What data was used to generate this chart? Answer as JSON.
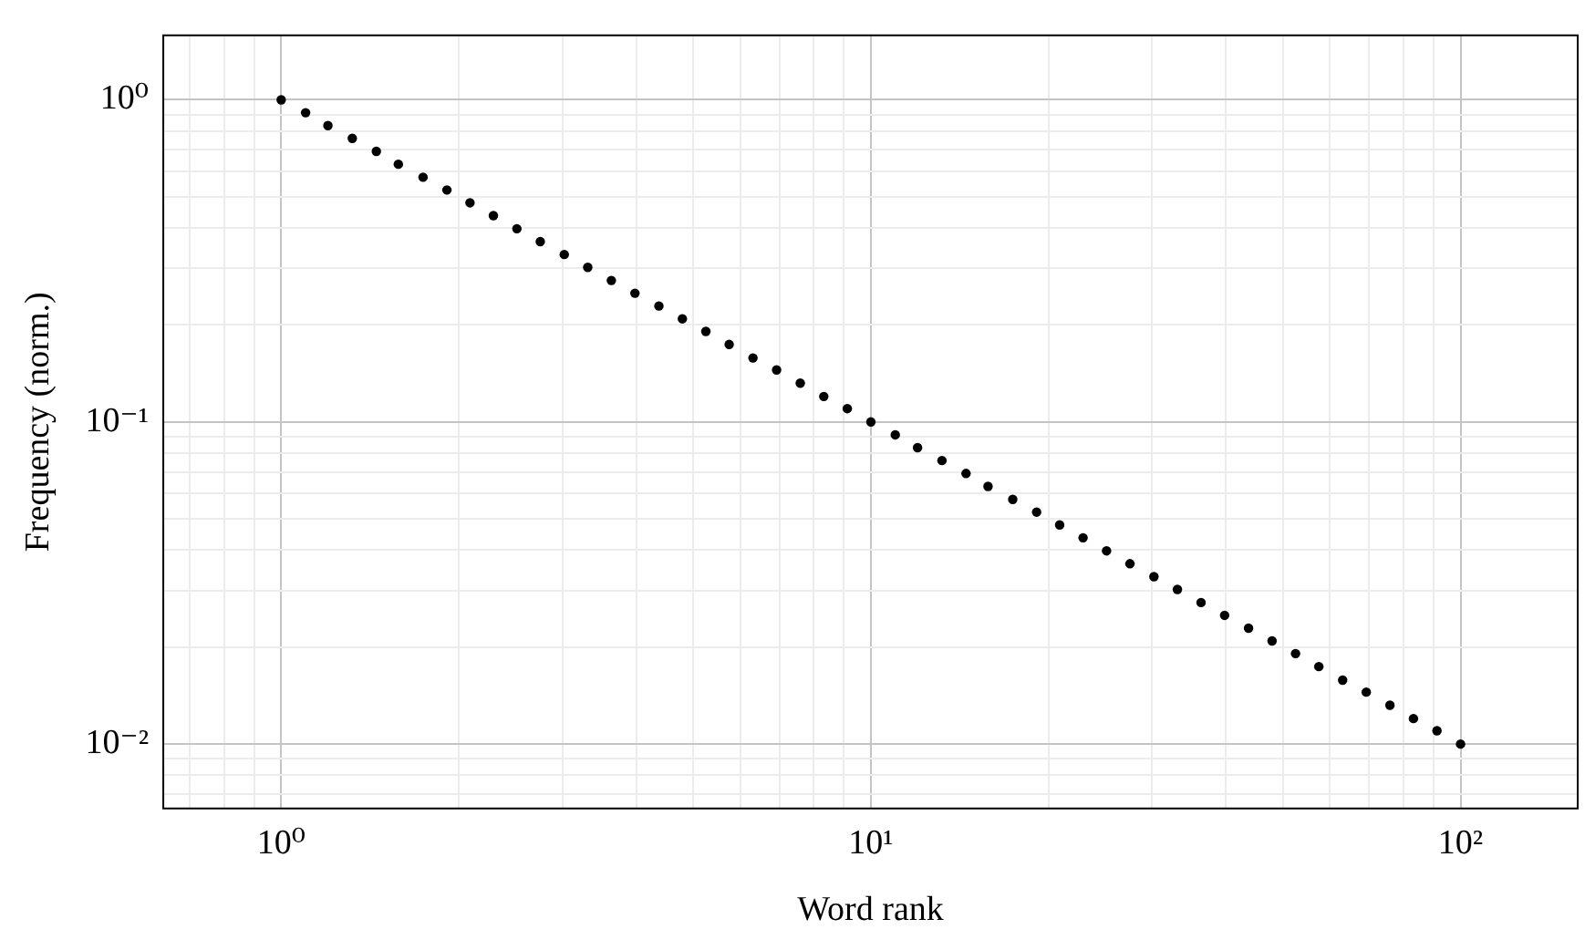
{
  "chart_data": {
    "type": "scatter",
    "xlabel": "Word rank",
    "ylabel": "Frequency (norm.)",
    "log": "xy",
    "grid": true,
    "legend": false,
    "marker": "circle",
    "xlim": [
      0.631,
      158
    ],
    "ylim": [
      0.00631,
      1.585
    ],
    "xticks": [
      {
        "value": 0.7,
        "label": null
      },
      {
        "value": 0.8,
        "label": null
      },
      {
        "value": 0.9,
        "label": null
      },
      {
        "value": 1,
        "label": "10⁰"
      },
      {
        "value": 2,
        "label": null
      },
      {
        "value": 3,
        "label": null
      },
      {
        "value": 4,
        "label": null
      },
      {
        "value": 5,
        "label": null
      },
      {
        "value": 6,
        "label": null
      },
      {
        "value": 7,
        "label": null
      },
      {
        "value": 8,
        "label": null
      },
      {
        "value": 9,
        "label": null
      },
      {
        "value": 10,
        "label": "10¹"
      },
      {
        "value": 20,
        "label": null
      },
      {
        "value": 30,
        "label": null
      },
      {
        "value": 40,
        "label": null
      },
      {
        "value": 50,
        "label": null
      },
      {
        "value": 60,
        "label": null
      },
      {
        "value": 70,
        "label": null
      },
      {
        "value": 80,
        "label": null
      },
      {
        "value": 90,
        "label": null
      },
      {
        "value": 100,
        "label": "10²"
      }
    ],
    "yticks": [
      {
        "value": 0.007,
        "label": null
      },
      {
        "value": 0.008,
        "label": null
      },
      {
        "value": 0.009,
        "label": null
      },
      {
        "value": 0.01,
        "label": "10⁻²"
      },
      {
        "value": 0.02,
        "label": null
      },
      {
        "value": 0.03,
        "label": null
      },
      {
        "value": 0.04,
        "label": null
      },
      {
        "value": 0.05,
        "label": null
      },
      {
        "value": 0.06,
        "label": null
      },
      {
        "value": 0.07,
        "label": null
      },
      {
        "value": 0.08,
        "label": null
      },
      {
        "value": 0.09,
        "label": null
      },
      {
        "value": 0.1,
        "label": "10⁻¹"
      },
      {
        "value": 0.2,
        "label": null
      },
      {
        "value": 0.3,
        "label": null
      },
      {
        "value": 0.4,
        "label": null
      },
      {
        "value": 0.5,
        "label": null
      },
      {
        "value": 0.6,
        "label": null
      },
      {
        "value": 0.7,
        "label": null
      },
      {
        "value": 0.8,
        "label": null
      },
      {
        "value": 0.9,
        "label": null
      },
      {
        "value": 1,
        "label": "10⁰"
      }
    ],
    "series": [
      {
        "color": "#000000",
        "x": [
          1,
          1.1,
          1.2,
          1.32,
          1.45,
          1.58,
          1.74,
          1.91,
          2.09,
          2.29,
          2.51,
          2.75,
          3.02,
          3.31,
          3.63,
          3.98,
          4.37,
          4.79,
          5.25,
          5.75,
          6.31,
          6.92,
          7.59,
          8.32,
          9.12,
          10,
          11.0,
          12.0,
          13.2,
          14.5,
          15.8,
          17.4,
          19.1,
          20.9,
          22.9,
          25.1,
          27.5,
          30.2,
          33.1,
          36.3,
          39.8,
          43.7,
          47.9,
          52.5,
          57.5,
          63.1,
          69.2,
          75.9,
          83.2,
          91.2,
          100
        ],
        "values": [
          1,
          0.912,
          0.832,
          0.759,
          0.692,
          0.631,
          0.575,
          0.525,
          0.479,
          0.437,
          0.398,
          0.363,
          0.331,
          0.302,
          0.275,
          0.251,
          0.229,
          0.209,
          0.191,
          0.174,
          0.158,
          0.145,
          0.132,
          0.12,
          0.11,
          0.1,
          0.0912,
          0.0832,
          0.0759,
          0.0692,
          0.0631,
          0.0575,
          0.0525,
          0.0479,
          0.0437,
          0.0398,
          0.0363,
          0.0331,
          0.0302,
          0.0275,
          0.0251,
          0.0229,
          0.0209,
          0.0191,
          0.0174,
          0.0158,
          0.0145,
          0.0132,
          0.012,
          0.011,
          0.01
        ]
      }
    ]
  }
}
